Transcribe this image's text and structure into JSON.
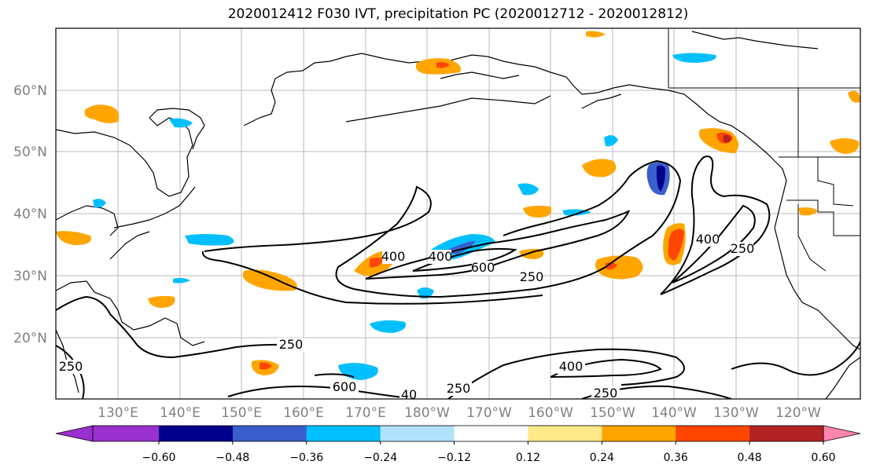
{
  "title": "2020012412 F030 IVT, precipitation PC (2020012712 - 2020012812)",
  "lat_ticks": [
    "60°N",
    "50°N",
    "40°N",
    "30°N",
    "20°N"
  ],
  "lon_ticks": [
    "130°E",
    "140°E",
    "150°E",
    "160°E",
    "170°E",
    "180°W",
    "170°W",
    "160°W",
    "150°W",
    "140°W",
    "130°W",
    "120°W"
  ],
  "colorbar": {
    "colors": [
      "#9b30d0",
      "#00008b",
      "#3a5fcd",
      "#00bfff",
      "#b0e2ff",
      "#ffffff",
      "#ffe989",
      "#ffa500",
      "#ff4500",
      "#b22222",
      "#ff85b0"
    ],
    "labels": [
      "−0.60",
      "−0.48",
      "−0.36",
      "−0.24",
      "−0.12",
      "0.12",
      "0.24",
      "0.36",
      "0.48",
      "0.60"
    ]
  },
  "contour_labels": [
    "400",
    "400",
    "600",
    "250",
    "250",
    "400",
    "250",
    "250",
    "600",
    "40",
    "250",
    "400",
    "250",
    "250"
  ]
}
